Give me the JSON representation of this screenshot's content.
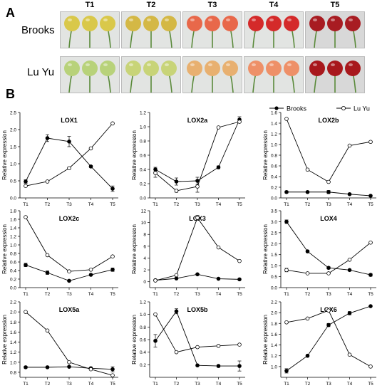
{
  "panels": {
    "a": "A",
    "b": "B"
  },
  "cultivars": [
    "Brooks",
    "Lu Yu"
  ],
  "stages": [
    "T1",
    "T2",
    "T3",
    "T4",
    "T5"
  ],
  "photo_colors": {
    "brooks": [
      "#d9c84a",
      "#d4b845",
      "#e8684a",
      "#d42a2a",
      "#a81c22"
    ],
    "luyu": [
      "#b8d27a",
      "#c8d478",
      "#e8b070",
      "#ee9068",
      "#a8181c"
    ]
  },
  "legend": {
    "brooks": "Brooks",
    "luyu": "Lu Yu"
  },
  "ylabel": "Relative expression",
  "chart_data": [
    {
      "type": "line",
      "title": "LOX1",
      "categories": [
        "T1",
        "T2",
        "T3",
        "T4",
        "T5"
      ],
      "ylim": [
        0,
        2.5
      ],
      "yticks": [
        "0.0",
        "0.5",
        "1.0",
        "1.5",
        "2.0",
        "2.5"
      ],
      "ytick_values": [
        0,
        0.5,
        1,
        1.5,
        2,
        2.5
      ],
      "series": [
        {
          "name": "Brooks",
          "values": [
            0.48,
            1.75,
            1.65,
            0.92,
            0.27
          ],
          "err": [
            0.05,
            0.1,
            0.15,
            0.03,
            0.08
          ]
        },
        {
          "name": "Lu Yu",
          "values": [
            0.35,
            0.48,
            0.87,
            1.45,
            2.18
          ],
          "err": [
            0,
            0,
            0.03,
            0,
            0
          ]
        }
      ]
    },
    {
      "type": "line",
      "title": "LOX2a",
      "categories": [
        "T1",
        "T2",
        "T3",
        "T4",
        "T5"
      ],
      "ylim": [
        0,
        1.2
      ],
      "yticks": [
        "0.0",
        "0.2",
        "0.4",
        "0.6",
        "0.8",
        "1.0",
        "1.2"
      ],
      "ytick_values": [
        0,
        0.2,
        0.4,
        0.6,
        0.8,
        1.0,
        1.2
      ],
      "series": [
        {
          "name": "Brooks",
          "values": [
            0.4,
            0.23,
            0.24,
            0.43,
            1.1
          ],
          "err": [
            0.03,
            0.05,
            0.05,
            0.02,
            0.04
          ]
        },
        {
          "name": "Lu Yu",
          "values": [
            0.35,
            0.1,
            0.16,
            0.99,
            1.07
          ],
          "err": [
            0.06,
            0.02,
            0.08,
            0,
            0
          ]
        }
      ]
    },
    {
      "type": "line",
      "title": "LOX2b",
      "categories": [
        "T1",
        "T2",
        "T3",
        "T4",
        "T5"
      ],
      "ylim": [
        0,
        1.6
      ],
      "yticks": [
        "0.0",
        "0.2",
        "0.4",
        "0.6",
        "0.8",
        "1.0",
        "1.2",
        "1.4",
        "1.6"
      ],
      "ytick_values": [
        0,
        0.2,
        0.4,
        0.6,
        0.8,
        1.0,
        1.2,
        1.4,
        1.6
      ],
      "series": [
        {
          "name": "Brooks",
          "values": [
            0.11,
            0.11,
            0.11,
            0.07,
            0.04
          ],
          "err": [
            0.02,
            0.01,
            0.03,
            0.01,
            0.01
          ]
        },
        {
          "name": "Lu Yu",
          "values": [
            1.48,
            0.53,
            0.3,
            0.98,
            1.05
          ],
          "err": [
            0,
            0,
            0,
            0,
            0
          ]
        }
      ]
    },
    {
      "type": "line",
      "title": "LOX2c",
      "categories": [
        "T1",
        "T2",
        "T3",
        "T4",
        "T5"
      ],
      "ylim": [
        0,
        1.8
      ],
      "yticks": [
        "0.0",
        "0.2",
        "0.4",
        "0.6",
        "0.8",
        "1.0",
        "1.2",
        "1.4",
        "1.6",
        "1.8"
      ],
      "ytick_values": [
        0,
        0.2,
        0.4,
        0.6,
        0.8,
        1.0,
        1.2,
        1.4,
        1.6,
        1.8
      ],
      "series": [
        {
          "name": "Brooks",
          "values": [
            0.53,
            0.35,
            0.16,
            0.3,
            0.42
          ],
          "err": [
            0.04,
            0.04,
            0.02,
            0.02,
            0.04
          ]
        },
        {
          "name": "Lu Yu",
          "values": [
            1.65,
            0.76,
            0.38,
            0.42,
            0.73
          ],
          "err": [
            0,
            0,
            0,
            0,
            0
          ]
        }
      ]
    },
    {
      "type": "line",
      "title": "LOX3",
      "categories": [
        "T1",
        "T2",
        "T3",
        "T4",
        "T5"
      ],
      "ylim": [
        -1,
        12
      ],
      "yticks": [
        "0",
        "2",
        "4",
        "6",
        "8",
        "10",
        "12"
      ],
      "ytick_values": [
        0,
        2,
        4,
        6,
        8,
        10,
        12
      ],
      "series": [
        {
          "name": "Brooks",
          "values": [
            0.25,
            0.55,
            1.25,
            0.5,
            0.4
          ],
          "err": [
            0.05,
            0.05,
            0.1,
            0.05,
            0.05
          ]
        },
        {
          "name": "Lu Yu",
          "values": [
            0.2,
            1.1,
            10.8,
            5.8,
            3.5
          ],
          "err": [
            0,
            0,
            0.4,
            0,
            0
          ]
        }
      ]
    },
    {
      "type": "line",
      "title": "LOX4",
      "categories": [
        "T1",
        "T2",
        "T3",
        "T4",
        "T5"
      ],
      "ylim": [
        0,
        3.5
      ],
      "yticks": [
        "0.0",
        "0.5",
        "1.0",
        "1.5",
        "2.0",
        "2.5",
        "3.0",
        "3.5"
      ],
      "ytick_values": [
        0,
        0.5,
        1,
        1.5,
        2,
        2.5,
        3,
        3.5
      ],
      "series": [
        {
          "name": "Brooks",
          "values": [
            3.0,
            1.65,
            0.9,
            0.8,
            0.58
          ],
          "err": [
            0.08,
            0.05,
            0.05,
            0.03,
            0.06
          ]
        },
        {
          "name": "Lu Yu",
          "values": [
            0.8,
            0.65,
            0.65,
            1.27,
            2.05
          ],
          "err": [
            0.08,
            0,
            0,
            0,
            0
          ]
        }
      ]
    },
    {
      "type": "line",
      "title": "LOX5a",
      "categories": [
        "T1",
        "T2",
        "T3",
        "T4",
        "T5"
      ],
      "ylim": [
        0.7,
        2.2
      ],
      "yticks": [
        "0.8",
        "1.0",
        "1.2",
        "1.4",
        "1.6",
        "1.8",
        "2.0",
        "2.2"
      ],
      "ytick_values": [
        0.8,
        1.0,
        1.2,
        1.4,
        1.6,
        1.8,
        2.0,
        2.2
      ],
      "series": [
        {
          "name": "Brooks",
          "values": [
            0.9,
            0.9,
            0.91,
            0.88,
            0.86
          ],
          "err": [
            0.02,
            0.01,
            0.01,
            0.02,
            0.05
          ]
        },
        {
          "name": "Lu Yu",
          "values": [
            2.0,
            1.63,
            1.0,
            0.86,
            0.74
          ],
          "err": [
            0,
            0,
            0,
            0,
            0
          ]
        }
      ]
    },
    {
      "type": "line",
      "title": "LOX5b",
      "categories": [
        "T1",
        "T2",
        "T3",
        "T4",
        "T5"
      ],
      "ylim": [
        0,
        1.2
      ],
      "yticks": [
        "0.2",
        "0.4",
        "0.6",
        "0.8",
        "1.0",
        "1.2"
      ],
      "ytick_values": [
        0.2,
        0.4,
        0.6,
        0.8,
        1.0,
        1.2
      ],
      "series": [
        {
          "name": "Brooks",
          "values": [
            0.58,
            1.05,
            0.19,
            0.18,
            0.18
          ],
          "err": [
            0.1,
            0.04,
            0.01,
            0.02,
            0.08
          ]
        },
        {
          "name": "Lu Yu",
          "values": [
            1.0,
            0.4,
            0.48,
            0.5,
            0.52
          ],
          "err": [
            0,
            0,
            0,
            0,
            0
          ]
        }
      ]
    },
    {
      "type": "line",
      "title": "LOX6",
      "categories": [
        "T1",
        "T2",
        "T3",
        "T4",
        "T5"
      ],
      "ylim": [
        0.8,
        2.2
      ],
      "yticks": [
        "1.0",
        "1.2",
        "1.4",
        "1.6",
        "1.8",
        "2.0",
        "2.2"
      ],
      "ytick_values": [
        1.0,
        1.2,
        1.4,
        1.6,
        1.8,
        2.0,
        2.2
      ],
      "series": [
        {
          "name": "Brooks",
          "values": [
            0.92,
            1.2,
            1.77,
            1.99,
            2.12
          ],
          "err": [
            0.04,
            0.02,
            0.03,
            0.03,
            0.01
          ]
        },
        {
          "name": "Lu Yu",
          "values": [
            1.82,
            1.89,
            2.04,
            1.22,
            1.0
          ],
          "err": [
            0,
            0,
            0,
            0,
            0
          ]
        }
      ]
    }
  ]
}
